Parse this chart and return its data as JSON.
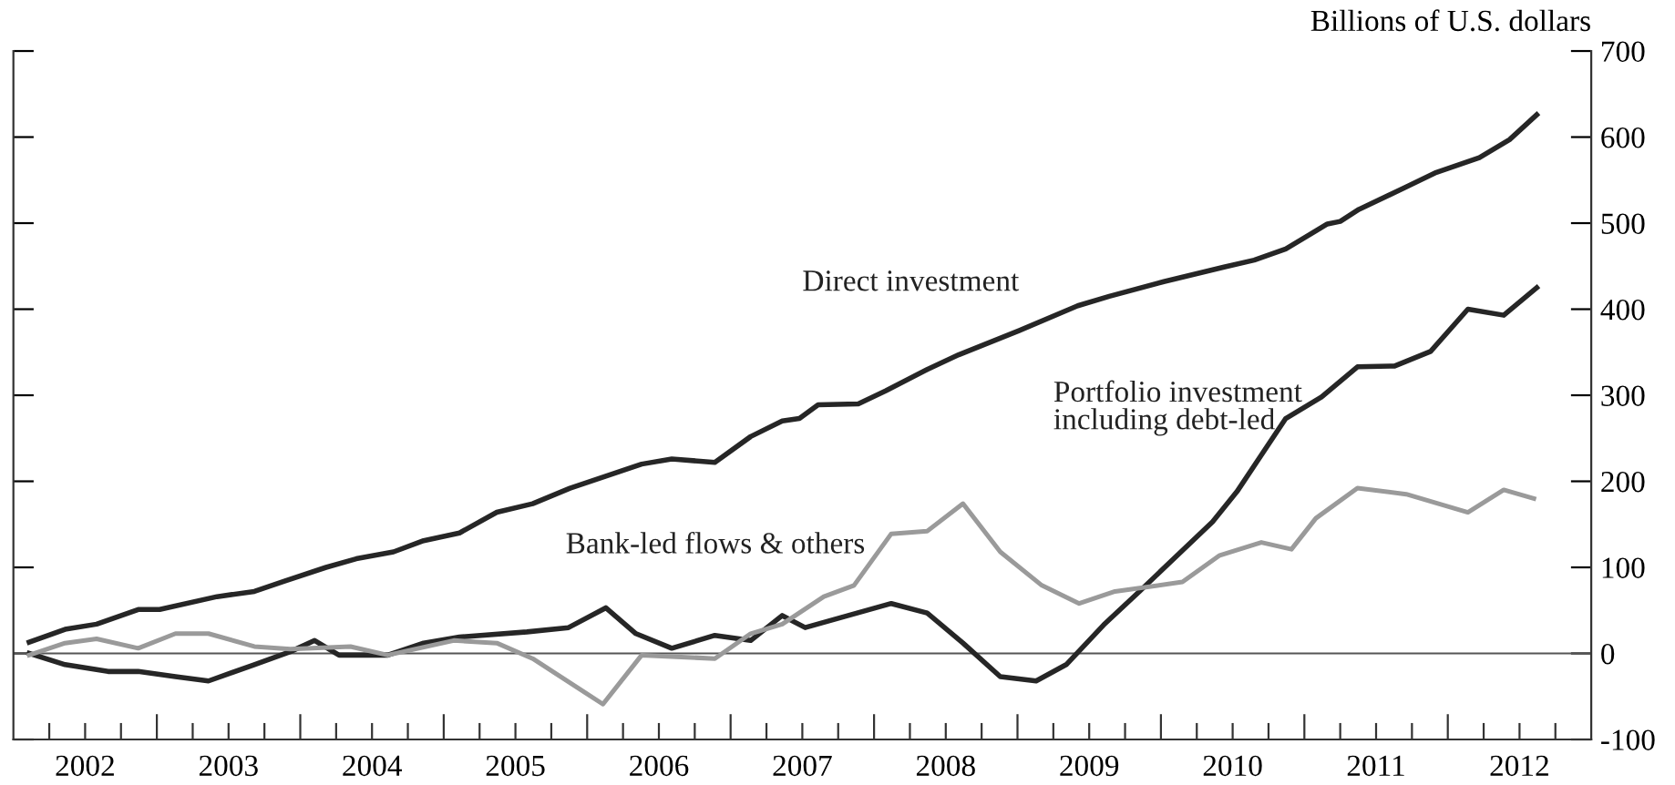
{
  "chart_data": {
    "type": "line",
    "ylabel": "Billions of U.S. dollars",
    "xlim": [
      2002,
      2013
    ],
    "ylim": [
      -100,
      700
    ],
    "yticks": [
      -100,
      0,
      100,
      200,
      300,
      400,
      500,
      600,
      700
    ],
    "xticks": [
      {
        "value": 2002.25,
        "label": null
      },
      {
        "value": 2002.5,
        "label": "2002"
      },
      {
        "value": 2002.75,
        "label": null
      },
      {
        "value": 2003,
        "label": null
      },
      {
        "value": 2003.25,
        "label": null
      },
      {
        "value": 2003.5,
        "label": "2003"
      },
      {
        "value": 2003.75,
        "label": null
      },
      {
        "value": 2004,
        "label": null
      },
      {
        "value": 2004.25,
        "label": null
      },
      {
        "value": 2004.5,
        "label": "2004"
      },
      {
        "value": 2004.75,
        "label": null
      },
      {
        "value": 2005,
        "label": null
      },
      {
        "value": 2005.25,
        "label": null
      },
      {
        "value": 2005.5,
        "label": "2005"
      },
      {
        "value": 2005.75,
        "label": null
      },
      {
        "value": 2006,
        "label": null
      },
      {
        "value": 2006.25,
        "label": null
      },
      {
        "value": 2006.5,
        "label": "2006"
      },
      {
        "value": 2006.75,
        "label": null
      },
      {
        "value": 2007,
        "label": null
      },
      {
        "value": 2007.25,
        "label": null
      },
      {
        "value": 2007.5,
        "label": "2007"
      },
      {
        "value": 2007.75,
        "label": null
      },
      {
        "value": 2008,
        "label": null
      },
      {
        "value": 2008.25,
        "label": null
      },
      {
        "value": 2008.5,
        "label": "2008"
      },
      {
        "value": 2008.75,
        "label": null
      },
      {
        "value": 2009,
        "label": null
      },
      {
        "value": 2009.25,
        "label": null
      },
      {
        "value": 2009.5,
        "label": "2009"
      },
      {
        "value": 2009.75,
        "label": null
      },
      {
        "value": 2010,
        "label": null
      },
      {
        "value": 2010.25,
        "label": null
      },
      {
        "value": 2010.5,
        "label": "2010"
      },
      {
        "value": 2010.75,
        "label": null
      },
      {
        "value": 2011,
        "label": null
      },
      {
        "value": 2011.25,
        "label": null
      },
      {
        "value": 2011.5,
        "label": "2011"
      },
      {
        "value": 2011.75,
        "label": null
      },
      {
        "value": 2012,
        "label": null
      },
      {
        "value": 2012.25,
        "label": null
      },
      {
        "value": 2012.5,
        "label": "2012"
      },
      {
        "value": 2012.75,
        "label": null
      }
    ],
    "grid": false,
    "legend": false,
    "marker": "none",
    "line_style": "solid",
    "ref_lines": [
      {
        "axis": "y",
        "value": 0,
        "color": "#555555"
      }
    ],
    "series": [
      {
        "name": "Direct investment",
        "color": "#262626",
        "x": [
          2002.11,
          2002.36,
          2002.58,
          2002.87,
          2003.02,
          2003.42,
          2003.68,
          2003.89,
          2004.18,
          2004.39,
          2004.65,
          2004.86,
          2005.11,
          2005.37,
          2005.62,
          2005.88,
          2006.13,
          2006.38,
          2006.59,
          2006.89,
          2007.14,
          2007.36,
          2007.48,
          2007.61,
          2007.89,
          2008.08,
          2008.37,
          2008.59,
          2009.01,
          2009.42,
          2009.64,
          2010.02,
          2010.44,
          2010.65,
          2010.87,
          2011.16,
          2011.25,
          2011.38,
          2011.71,
          2011.92,
          2012.22,
          2012.43,
          2012.62
        ],
        "values": [
          13,
          28,
          34,
          51,
          51,
          66,
          72,
          84,
          100,
          110,
          118,
          131,
          140,
          164,
          174,
          192,
          206,
          220,
          226,
          222,
          252,
          270,
          273,
          289,
          290,
          305,
          330,
          347,
          375,
          404,
          415,
          432,
          449,
          457,
          470,
          499,
          502,
          516,
          542,
          559,
          576,
          597,
          626
        ]
      },
      {
        "name": "Portfolio investment\nincluding debt-led",
        "color": "#262626",
        "x": [
          2002.11,
          2002.36,
          2002.66,
          2002.87,
          2003.13,
          2003.36,
          2003.68,
          2003.93,
          2004.1,
          2004.27,
          2004.61,
          2004.86,
          2005.11,
          2005.58,
          2005.87,
          2006.13,
          2006.34,
          2006.59,
          2006.89,
          2007.14,
          2007.36,
          2007.52,
          2008.12,
          2008.37,
          2008.62,
          2008.88,
          2009.13,
          2009.34,
          2009.6,
          2009.85,
          2010.36,
          2010.53,
          2010.87,
          2011.12,
          2011.37,
          2011.63,
          2011.88,
          2012.14,
          2012.39,
          2012.62
        ],
        "values": [
          0,
          -13,
          -21,
          -21,
          -27,
          -32,
          -13,
          2,
          15,
          -2,
          -2,
          12,
          19,
          25,
          30,
          53,
          23,
          6,
          21,
          15,
          44,
          30,
          58,
          47,
          12,
          -27,
          -32,
          -13,
          33,
          72,
          153,
          188,
          273,
          298,
          333,
          334,
          351,
          400,
          393,
          425
        ]
      },
      {
        "name": "Bank-led flows & others",
        "color": "#9a9a9a",
        "x": [
          2002.11,
          2002.36,
          2002.58,
          2002.87,
          2003.13,
          2003.36,
          2003.68,
          2003.93,
          2004.35,
          2004.61,
          2005.07,
          2005.37,
          2005.62,
          2006.11,
          2006.38,
          2006.89,
          2007.14,
          2007.36,
          2007.65,
          2007.86,
          2008.12,
          2008.37,
          2008.62,
          2008.88,
          2009.17,
          2009.43,
          2009.68,
          2010.15,
          2010.41,
          2010.7,
          2010.91,
          2011.08,
          2011.37,
          2011.71,
          2012.14,
          2012.39,
          2012.6
        ],
        "values": [
          -2,
          12,
          17,
          6,
          23,
          23,
          8,
          5,
          8,
          -2,
          15,
          12,
          -6,
          -59,
          -2,
          -6,
          23,
          34,
          66,
          79,
          139,
          142,
          174,
          118,
          79,
          58,
          72,
          83,
          114,
          129,
          121,
          157,
          192,
          185,
          164,
          190,
          180
        ]
      }
    ]
  }
}
